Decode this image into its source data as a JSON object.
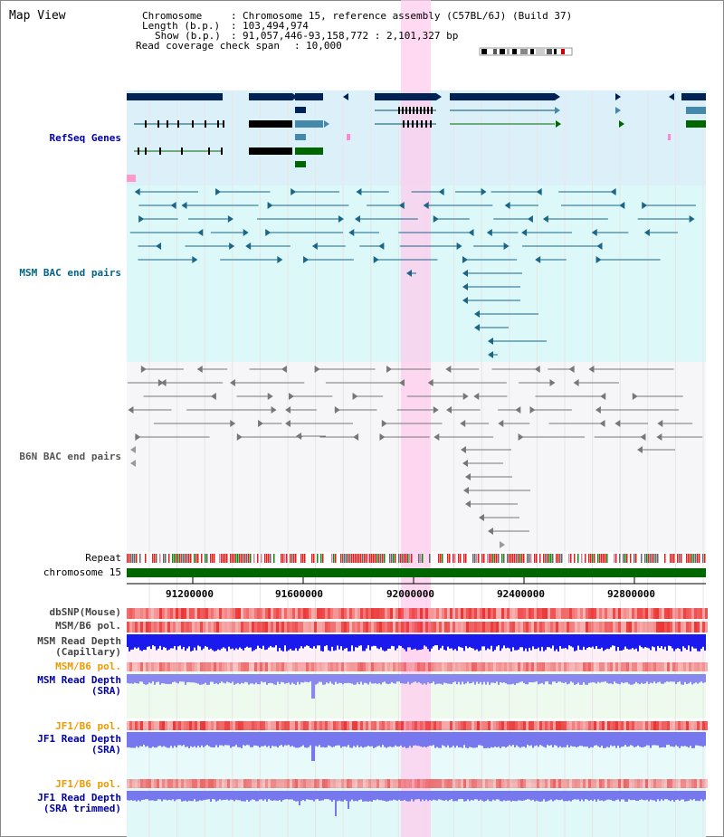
{
  "page": {
    "title": "Map View"
  },
  "info": {
    "chromosome_label": "Chromosome",
    "chromosome_value": "Chromosome 15, reference assembly (C57BL/6J) (Build 37)",
    "length_label": "Length (b.p.)",
    "length_value": "103,494,974",
    "show_label": "Show (b.p.)",
    "show_value": "91,057,446-93,158,772 : 2,101,327 bp",
    "coverage_label": "Read coverage check span",
    "coverage_value": "10,000"
  },
  "tracks": {
    "refseq": "RefSeq Genes",
    "msm_bac": "MSM BAC end pairs",
    "b6n_bac": "B6N BAC end pairs",
    "repeat": "Repeat",
    "chromosome": "chromosome 15",
    "dbsnp": "dbSNP(Mouse)",
    "msm_b6_pol": "MSM/B6 pol.",
    "msm_depth_cap_1": "MSM Read Depth",
    "msm_depth_cap_2": "(Capillary)",
    "msm_b6_pol2": "MSM/B6 pol.",
    "msm_depth_sra_1": "MSM Read Depth",
    "msm_depth_sra_2": "(SRA)",
    "jf1_b6_pol": "JF1/B6 pol.",
    "jf1_depth_sra_1": "JF1 Read Depth",
    "jf1_depth_sra_2": "(SRA)",
    "jf1_b6_pol2": "JF1/B6 pol.",
    "jf1_depth_trim_1": "JF1 Read Depth",
    "jf1_depth_trim_2": "(SRA trimmed)"
  },
  "axis": {
    "ticks": [
      "91200000",
      "91600000",
      "92000000",
      "92400000",
      "92800000"
    ]
  },
  "colors": {
    "refseq_label": "#0000aa",
    "msm_label": "#006688",
    "b6n_label": "#555555",
    "orange_label": "#ee9900",
    "blue_label": "#0000aa",
    "gene_dark": "#002255",
    "highlight": "#ffccee",
    "chromosome_bar": "#006600"
  }
}
